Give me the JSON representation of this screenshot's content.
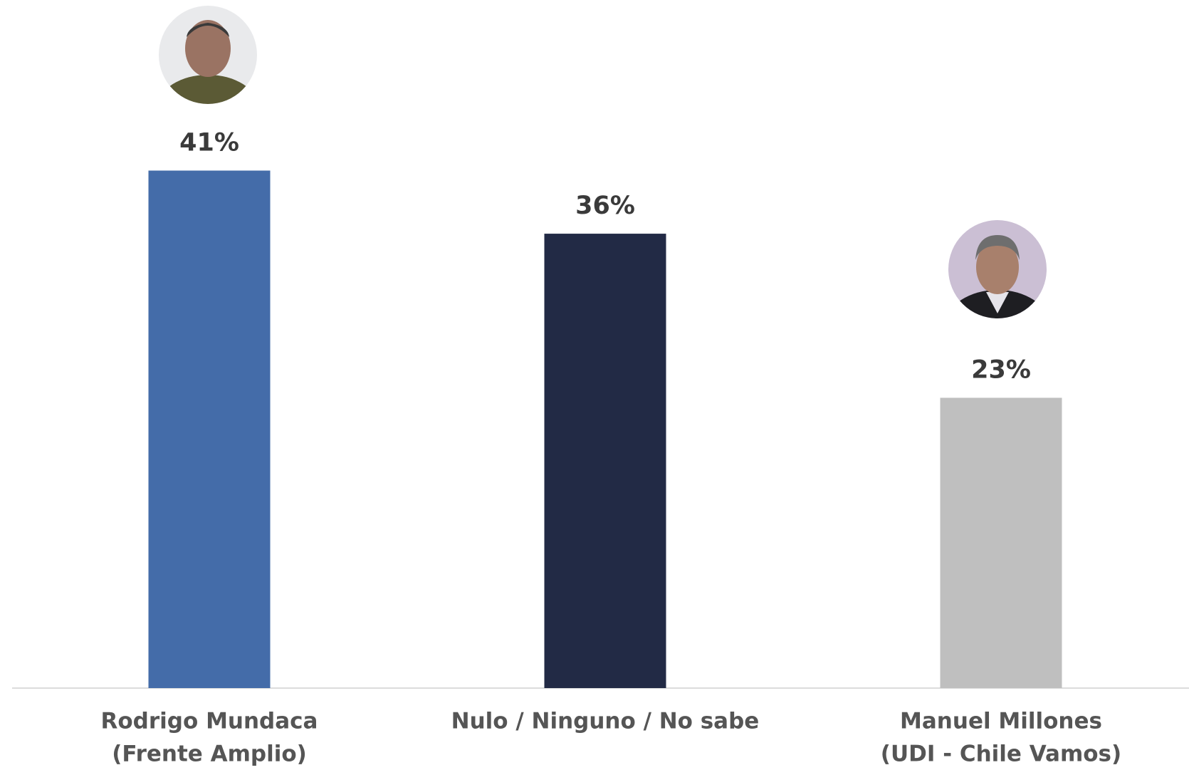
{
  "chart_data": {
    "type": "bar",
    "categories": [
      [
        "Rodrigo Mundaca",
        "(Frente Amplio)"
      ],
      [
        "Nulo / Ninguno / No sabe"
      ],
      [
        "Manuel Millones",
        "(UDI - Chile Vamos)"
      ]
    ],
    "values": [
      41,
      36,
      23
    ],
    "value_labels": [
      "41%",
      "36%",
      "23%"
    ],
    "colors": [
      "#446ca9",
      "#222a45",
      "#bfbfbf"
    ],
    "ylim": [
      0,
      50
    ]
  }
}
